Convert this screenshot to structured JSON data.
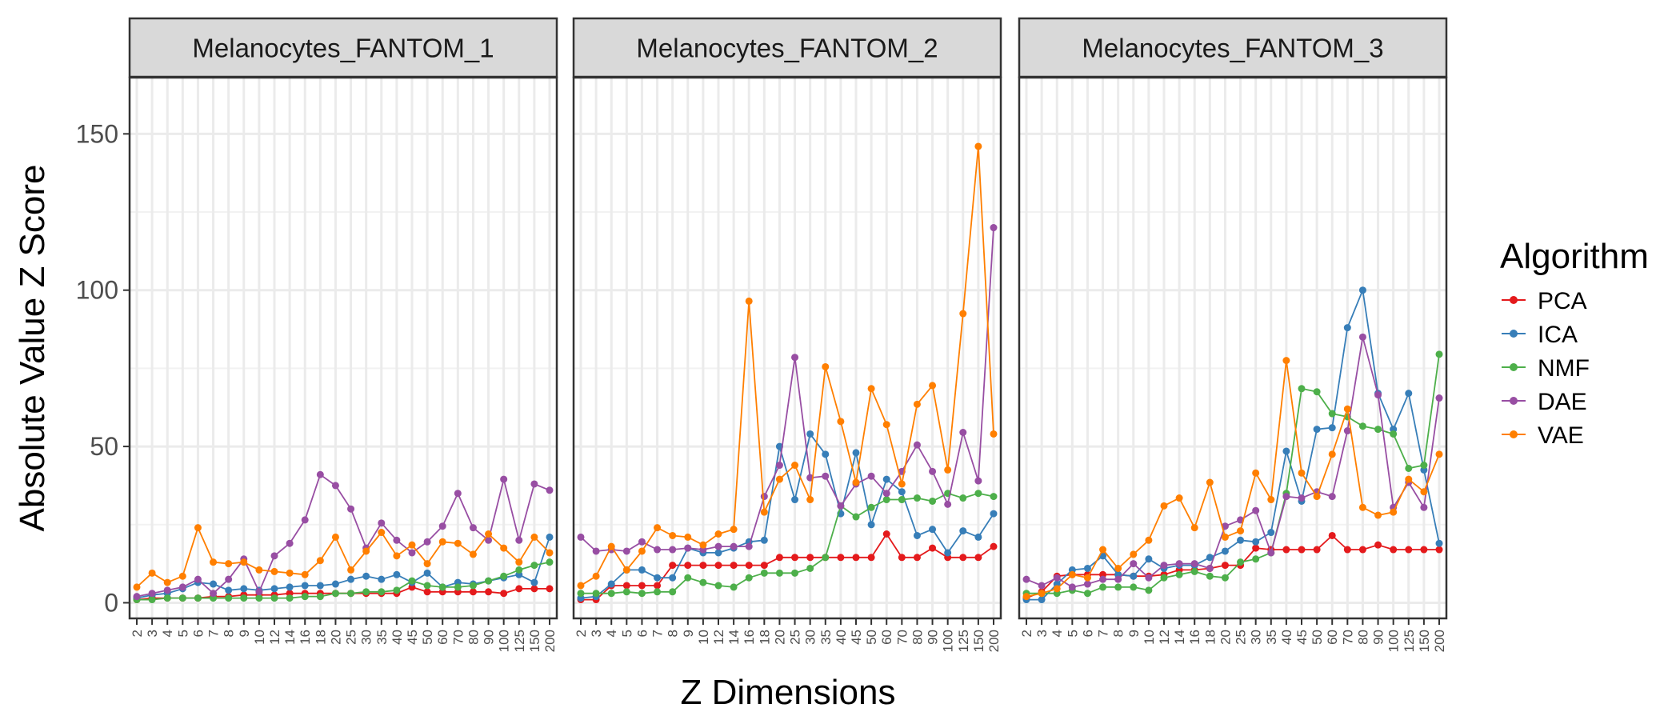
{
  "chart_data": {
    "type": "line",
    "xlabel": "Z Dimensions",
    "ylabel": "Absolute Value Z Score",
    "ylim": [
      -5,
      168
    ],
    "y_ticks": [
      0,
      50,
      100,
      150
    ],
    "grid": true,
    "legend_placement": "right",
    "legend_title": "Algorithm",
    "categories": [
      "2",
      "3",
      "4",
      "5",
      "6",
      "7",
      "8",
      "9",
      "10",
      "12",
      "14",
      "16",
      "18",
      "20",
      "25",
      "30",
      "35",
      "40",
      "45",
      "50",
      "60",
      "70",
      "80",
      "90",
      "100",
      "125",
      "150",
      "200"
    ],
    "series_styles": [
      {
        "name": "PCA",
        "color": "#E41A1C"
      },
      {
        "name": "ICA",
        "color": "#377EB8"
      },
      {
        "name": "NMF",
        "color": "#4DAF4A"
      },
      {
        "name": "DAE",
        "color": "#984EA3"
      },
      {
        "name": "VAE",
        "color": "#FF7F00"
      }
    ],
    "panels": [
      {
        "title": "Melanocytes_FANTOM_1",
        "series": [
          {
            "name": "PCA",
            "values": [
              1,
              1.5,
              1.5,
              1.5,
              1.5,
              2,
              2,
              2.5,
              2.5,
              2.5,
              3,
              3,
              3,
              3,
              3,
              3,
              3,
              3,
              5,
              3.5,
              3.5,
              3.5,
              3.5,
              3.5,
              3,
              4.5,
              4.5,
              4.5
            ]
          },
          {
            "name": "ICA",
            "values": [
              1.5,
              2.5,
              3,
              4.5,
              6.5,
              6,
              4,
              4.5,
              4,
              4.5,
              5,
              5.5,
              5.5,
              6,
              7.5,
              8.5,
              7.5,
              9,
              6.5,
              9.5,
              5,
              6.5,
              6,
              7,
              8,
              9,
              6.5,
              21
            ]
          },
          {
            "name": "NMF",
            "values": [
              1,
              1,
              1.5,
              1.5,
              1.5,
              1.5,
              1.5,
              1.5,
              1.5,
              1.5,
              1.5,
              2,
              2,
              3,
              3,
              3.5,
              3.5,
              4,
              7,
              5.5,
              5,
              5,
              5.5,
              7,
              8.5,
              10.5,
              12,
              13
            ]
          },
          {
            "name": "DAE",
            "values": [
              2,
              3,
              4,
              5,
              7.5,
              3,
              7.5,
              14,
              3.5,
              15,
              19,
              26.5,
              41,
              37.5,
              30,
              17.5,
              25.5,
              20,
              16,
              19.5,
              24.5,
              35,
              24,
              20,
              39.5,
              20,
              38,
              36
            ]
          },
          {
            "name": "VAE",
            "values": [
              5,
              9.5,
              6.5,
              8.5,
              24,
              13,
              12.5,
              13,
              10.5,
              10,
              9.5,
              9,
              13.5,
              21,
              10.5,
              16.5,
              22.5,
              15,
              18.5,
              12.5,
              19.5,
              19,
              15.5,
              22,
              17.5,
              13,
              21,
              16
            ]
          }
        ]
      },
      {
        "title": "Melanocytes_FANTOM_2",
        "series": [
          {
            "name": "PCA",
            "values": [
              1,
              1,
              5.5,
              5.5,
              5.5,
              5.5,
              12,
              12,
              12,
              12,
              12,
              12,
              12,
              14.5,
              14.5,
              14.5,
              14.5,
              14.5,
              14.5,
              14.5,
              22,
              14.5,
              14.5,
              17.5,
              14.5,
              14.5,
              14.5,
              18
            ]
          },
          {
            "name": "ICA",
            "values": [
              1.5,
              2,
              6,
              10.5,
              10.5,
              8,
              8,
              17.5,
              16,
              16,
              17.5,
              19.5,
              20,
              50,
              33,
              54,
              47.5,
              28.5,
              48,
              25,
              39.5,
              35.5,
              21.5,
              23.5,
              16,
              23,
              21,
              28.5
            ]
          },
          {
            "name": "NMF",
            "values": [
              3,
              3,
              3,
              3.5,
              3,
              3.5,
              3.5,
              8,
              6.5,
              5.5,
              5,
              8,
              9.5,
              9.5,
              9.5,
              11,
              14.5,
              31,
              27.5,
              30.5,
              33,
              33,
              33.5,
              32.5,
              35,
              33.5,
              35,
              34
            ]
          },
          {
            "name": "DAE",
            "values": [
              21,
              16.5,
              17,
              16.5,
              19.5,
              17,
              17,
              17.5,
              17,
              18,
              18,
              18,
              34,
              44,
              78.5,
              40,
              40.5,
              31,
              38,
              40.5,
              35,
              42,
              50.5,
              42,
              31.5,
              54.5,
              39,
              120
            ]
          },
          {
            "name": "VAE",
            "values": [
              5.5,
              8.5,
              18,
              10.5,
              16.5,
              24,
              21.5,
              21,
              18.5,
              22,
              23.5,
              96.5,
              29,
              39.5,
              44,
              33,
              75.5,
              58,
              38.5,
              68.5,
              57,
              38,
              63.5,
              69.5,
              42.5,
              92.5,
              146,
              54
            ]
          }
        ]
      },
      {
        "title": "Melanocytes_FANTOM_3",
        "series": [
          {
            "name": "PCA",
            "values": [
              1.5,
              3.5,
              8.5,
              9,
              9,
              9,
              9,
              8.5,
              8.5,
              9,
              10.5,
              10.5,
              11,
              12,
              12,
              17.5,
              17,
              17,
              17,
              17,
              21.5,
              17,
              17,
              18.5,
              17,
              17,
              17,
              17
            ]
          },
          {
            "name": "ICA",
            "values": [
              1,
              1,
              6,
              10.5,
              11,
              15,
              9,
              8.5,
              14,
              11,
              12,
              12,
              14.5,
              16.5,
              20,
              19.5,
              22.5,
              48.5,
              32.5,
              55.5,
              56,
              88,
              100,
              67,
              55.5,
              67,
              42.5,
              19
            ]
          },
          {
            "name": "NMF",
            "values": [
              3,
              3,
              3,
              4,
              3,
              5,
              5,
              5,
              4,
              8,
              9,
              10,
              8.5,
              8,
              13,
              14,
              16,
              35,
              68.5,
              67.5,
              60.5,
              59.5,
              56.5,
              55.5,
              54,
              43,
              44,
              79.5
            ]
          },
          {
            "name": "DAE",
            "values": [
              7.5,
              5.5,
              8,
              5,
              6,
              7.5,
              7.5,
              12.5,
              8,
              12,
              12.5,
              12.5,
              11,
              24.5,
              26.5,
              29.5,
              16,
              34,
              33.5,
              35.5,
              34,
              55,
              85,
              66.5,
              30.5,
              38.5,
              30.5,
              65.5
            ]
          },
          {
            "name": "VAE",
            "values": [
              2,
              3,
              4.5,
              9,
              8,
              17,
              11,
              15.5,
              20,
              31,
              33.5,
              24,
              38.5,
              21,
              23,
              41.5,
              33,
              77.5,
              41.5,
              34,
              47.5,
              62,
              30.5,
              28,
              29,
              39.5,
              35.5,
              47.5
            ]
          }
        ]
      }
    ]
  }
}
